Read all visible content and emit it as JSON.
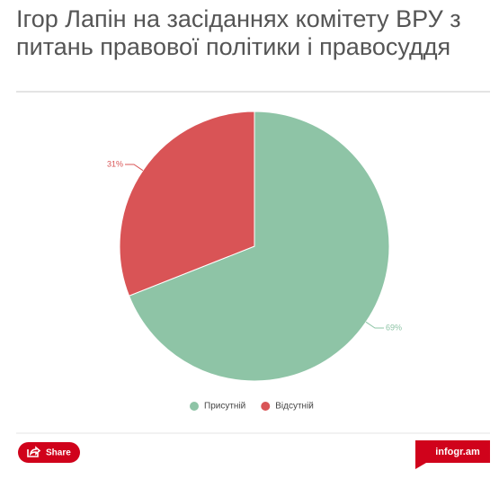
{
  "chart_data": {
    "type": "pie",
    "title": "Ігор Лапін на засіданнях комітету ВРУ з питань правової політики і правосуддя",
    "categories": [
      "Присутній",
      "Відсутній"
    ],
    "values": [
      69,
      31
    ],
    "value_labels": [
      "69%",
      "31%"
    ],
    "colors": [
      "#8ec4a6",
      "#d95456"
    ],
    "legend": "bottom"
  },
  "footer": {
    "share": "Share",
    "brand": "infogr.am"
  }
}
